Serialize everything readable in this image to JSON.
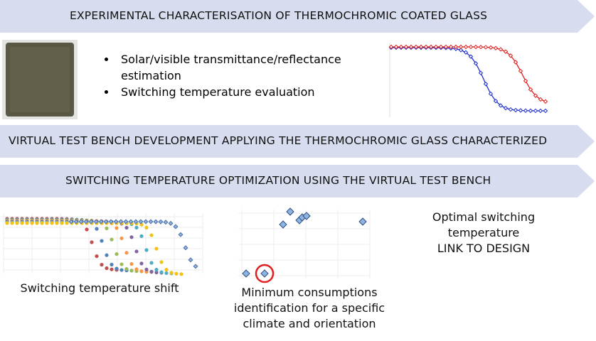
{
  "banners": [
    "EXPERIMENTAL CHARACTERISATION OF THERMOCHROMIC COATED GLASS",
    "VIRTUAL TEST BENCH DEVELOPMENT APPLYING THE THERMOCHROMIC GLASS CHARACTERIZED",
    "SWITCHING TEMPERATURE OPTIMIZATION USING THE VIRTUAL TEST BENCH"
  ],
  "bullets": [
    "Solar/visible transmittance/reflectance estimation",
    "Switching temperature evaluation"
  ],
  "captions": {
    "shift": "Switching temperature shift",
    "minimum": [
      "Minimum consumptions",
      "identification for a specific",
      "climate and orientation"
    ],
    "optimal": [
      "Optimal switching",
      "temperature",
      "LINK TO DESIGN"
    ]
  }
}
